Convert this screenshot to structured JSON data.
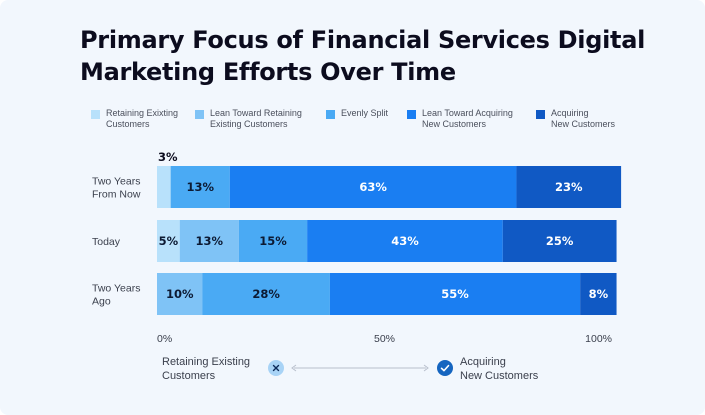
{
  "title": "Primary Focus of Financial Services Digital Marketing Efforts Over Time",
  "legend": [
    {
      "label": "Retaining Exixting\nCustomers",
      "color": "#b8e1fb"
    },
    {
      "label": "Lean Toward Retaining\nExisting Customers",
      "color": "#7fc3f6"
    },
    {
      "label": "Evenly Split",
      "color": "#4aaaf4"
    },
    {
      "label": "Lean Toward Acquiring\nNew Customers",
      "color": "#1a7ef2"
    },
    {
      "label": "Acquiring\nNew Customers",
      "color": "#1059c4"
    }
  ],
  "scale": {
    "left_label": "Retaining Existing\nCustomers",
    "right_label": "Acquiring\nNew Customers",
    "left_icon": "x-icon",
    "right_icon": "check-icon"
  },
  "chart_data": {
    "type": "bar",
    "orientation": "horizontal",
    "stacked": true,
    "categories": [
      "Two Years\nFrom Now",
      "Today",
      "Two Years\nAgo"
    ],
    "series": [
      {
        "name": "Retaining Exixting Customers",
        "values": [
          3,
          5,
          0
        ]
      },
      {
        "name": "Lean Toward Retaining Existing Customers",
        "values": [
          0,
          13,
          10
        ]
      },
      {
        "name": "Evenly Split",
        "values": [
          13,
          15,
          28
        ]
      },
      {
        "name": "Lean Toward Acquiring New Customers",
        "values": [
          63,
          43,
          55
        ]
      },
      {
        "name": "Acquiring New Customers",
        "values": [
          23,
          25,
          8
        ]
      }
    ],
    "x_ticks": [
      "0%",
      "50%",
      "100%"
    ],
    "xlim": [
      0,
      100
    ],
    "grid": false,
    "legend_position": "top"
  }
}
